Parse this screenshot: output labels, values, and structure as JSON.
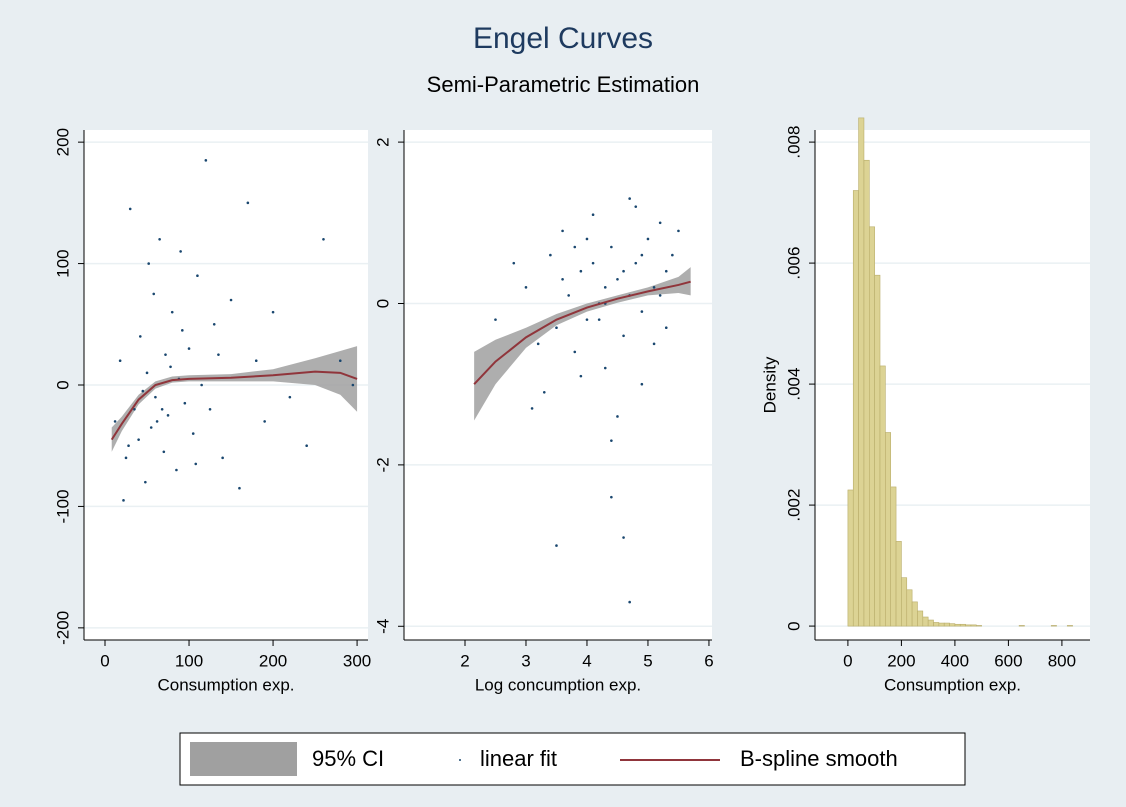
{
  "title": "Engel Curves",
  "subtitle": "Semi-Parametric Estimation",
  "chart_data": [
    {
      "type": "scatter",
      "xlabel": "Consumption exp.",
      "xlim": [
        -25,
        313
      ],
      "ylim": [
        -210,
        210
      ],
      "xticks": [
        0,
        100,
        200,
        300
      ],
      "yticks": [
        -200,
        -100,
        0,
        100,
        200
      ],
      "grid": true,
      "series": [
        {
          "name": "95% CI",
          "color": "#a0a0a0",
          "x": [
            8,
            20,
            40,
            60,
            80,
            100,
            150,
            200,
            250,
            280,
            300
          ],
          "lower": [
            -55,
            -38,
            -16,
            -3,
            2,
            3,
            3,
            3,
            0,
            -8,
            -22
          ],
          "upper": [
            -35,
            -26,
            -8,
            3,
            7,
            8,
            9,
            13,
            22,
            28,
            32
          ]
        },
        {
          "name": "linear fit",
          "color": "#1a476f",
          "x": [
            12,
            18,
            25,
            30,
            35,
            40,
            42,
            48,
            50,
            55,
            58,
            60,
            65,
            70,
            72,
            75,
            80,
            85,
            88,
            90,
            95,
            100,
            105,
            110,
            115,
            120,
            125,
            130,
            140,
            150,
            160,
            170,
            180,
            190,
            200,
            220,
            240,
            260,
            280,
            295,
            22,
            45,
            62,
            78,
            92,
            108,
            135,
            28,
            52,
            68
          ],
          "y": [
            -30,
            20,
            -60,
            145,
            -20,
            -45,
            40,
            -80,
            10,
            -35,
            75,
            -10,
            120,
            -55,
            25,
            -25,
            60,
            -70,
            5,
            110,
            -15,
            30,
            -40,
            90,
            0,
            185,
            -20,
            50,
            -60,
            70,
            -85,
            150,
            20,
            -30,
            60,
            -10,
            -50,
            120,
            20,
            0,
            -95,
            -5,
            -30,
            15,
            45,
            -65,
            25,
            -50,
            100,
            -20
          ]
        },
        {
          "name": "B-spline smooth",
          "color": "#90353b",
          "x": [
            8,
            20,
            40,
            60,
            80,
            100,
            150,
            200,
            250,
            280,
            300
          ],
          "y": [
            -45,
            -32,
            -12,
            0,
            4,
            5,
            6,
            8,
            11,
            10,
            5
          ]
        }
      ]
    },
    {
      "type": "scatter",
      "xlabel": "Log concumption exp.",
      "xlim": [
        1,
        6.05
      ],
      "ylim": [
        -4.17,
        2.15
      ],
      "xticks": [
        2,
        3,
        4,
        5,
        6
      ],
      "yticks": [
        -4,
        -2,
        0,
        2
      ],
      "grid": true,
      "series": [
        {
          "name": "95% CI",
          "color": "#a0a0a0",
          "x": [
            2.15,
            2.5,
            3,
            3.5,
            4,
            4.5,
            5,
            5.5,
            5.7
          ],
          "lower": [
            -1.45,
            -1.0,
            -0.55,
            -0.27,
            -0.1,
            0.01,
            0.1,
            0.13,
            0.1
          ],
          "upper": [
            -0.6,
            -0.45,
            -0.3,
            -0.13,
            0,
            0.1,
            0.2,
            0.33,
            0.45
          ]
        },
        {
          "name": "linear fit",
          "color": "#1a476f",
          "x": [
            3.0,
            3.2,
            3.4,
            3.5,
            3.6,
            3.7,
            3.8,
            3.9,
            4.0,
            4.1,
            4.2,
            4.3,
            4.4,
            4.5,
            4.6,
            4.7,
            4.8,
            4.9,
            5.0,
            5.1,
            5.2,
            5.3,
            5.4,
            5.5,
            3.3,
            3.6,
            3.9,
            4.1,
            4.3,
            4.5,
            4.7,
            4.9,
            5.1,
            5.3,
            4.0,
            4.2,
            4.4,
            4.6,
            4.8,
            2.5,
            2.8,
            3.1,
            4.6,
            4.4,
            4.7,
            3.5,
            4.9,
            5.2,
            4.3,
            3.8
          ],
          "y": [
            0.2,
            -0.5,
            0.6,
            -0.3,
            0.9,
            0.1,
            -0.6,
            0.4,
            -0.2,
            1.1,
            0.0,
            -0.8,
            0.7,
            0.3,
            -0.4,
            1.3,
            0.5,
            -0.1,
            0.8,
            0.2,
            1.0,
            -0.3,
            0.6,
            0.9,
            -1.1,
            0.3,
            -0.9,
            0.5,
            0.2,
            -1.4,
            0.1,
            0.6,
            -0.5,
            0.4,
            0.8,
            -0.2,
            -1.7,
            0.4,
            1.2,
            -0.2,
            0.5,
            -1.3,
            -2.9,
            -2.4,
            -3.7,
            -3.0,
            -1.0,
            0.1,
            0.0,
            0.7
          ]
        },
        {
          "name": "B-spline smooth",
          "color": "#90353b",
          "x": [
            2.15,
            2.5,
            3,
            3.5,
            4,
            4.5,
            5,
            5.5,
            5.7
          ],
          "y": [
            -1.0,
            -0.72,
            -0.42,
            -0.2,
            -0.05,
            0.06,
            0.15,
            0.23,
            0.27
          ]
        }
      ]
    },
    {
      "type": "histogram",
      "xlabel": "Consumption exp.",
      "ylabel": "Density",
      "xlim": [
        -123,
        905
      ],
      "ylim": [
        -0.00023,
        0.0082
      ],
      "xticks": [
        0,
        200,
        400,
        600,
        800
      ],
      "yticks": [
        0,
        {
          "value": 0.002,
          "label": ".002"
        },
        {
          "value": 0.004,
          "label": ".004"
        },
        {
          "value": 0.006,
          "label": ".006"
        },
        {
          "value": 0.008,
          "label": ".008"
        }
      ],
      "grid": true,
      "color": "#dcd394",
      "edgecolor": "#b9ad6a",
      "bins": [
        0,
        20,
        40,
        60,
        80,
        100,
        120,
        140,
        160,
        180,
        200,
        220,
        240,
        260,
        280,
        300,
        320,
        340,
        360,
        380,
        400,
        420,
        440,
        460,
        480,
        500,
        520,
        540,
        560,
        580,
        600,
        620,
        640,
        660,
        680,
        700,
        720,
        740,
        760,
        780,
        800,
        820,
        840,
        860
      ],
      "values": [
        0.00225,
        0.0072,
        0.0084,
        0.0077,
        0.0066,
        0.0058,
        0.0043,
        0.0032,
        0.0023,
        0.0014,
        0.0008,
        0.0006,
        0.0004,
        0.00025,
        0.00015,
        0.0001,
        6e-05,
        5e-05,
        5e-05,
        4e-05,
        3e-05,
        3e-05,
        2e-05,
        2e-05,
        1e-05,
        0,
        0,
        0,
        0,
        0,
        0,
        0,
        1e-05,
        0,
        0,
        0,
        0,
        0,
        1e-05,
        0,
        0,
        1e-05,
        0
      ]
    }
  ]
}
